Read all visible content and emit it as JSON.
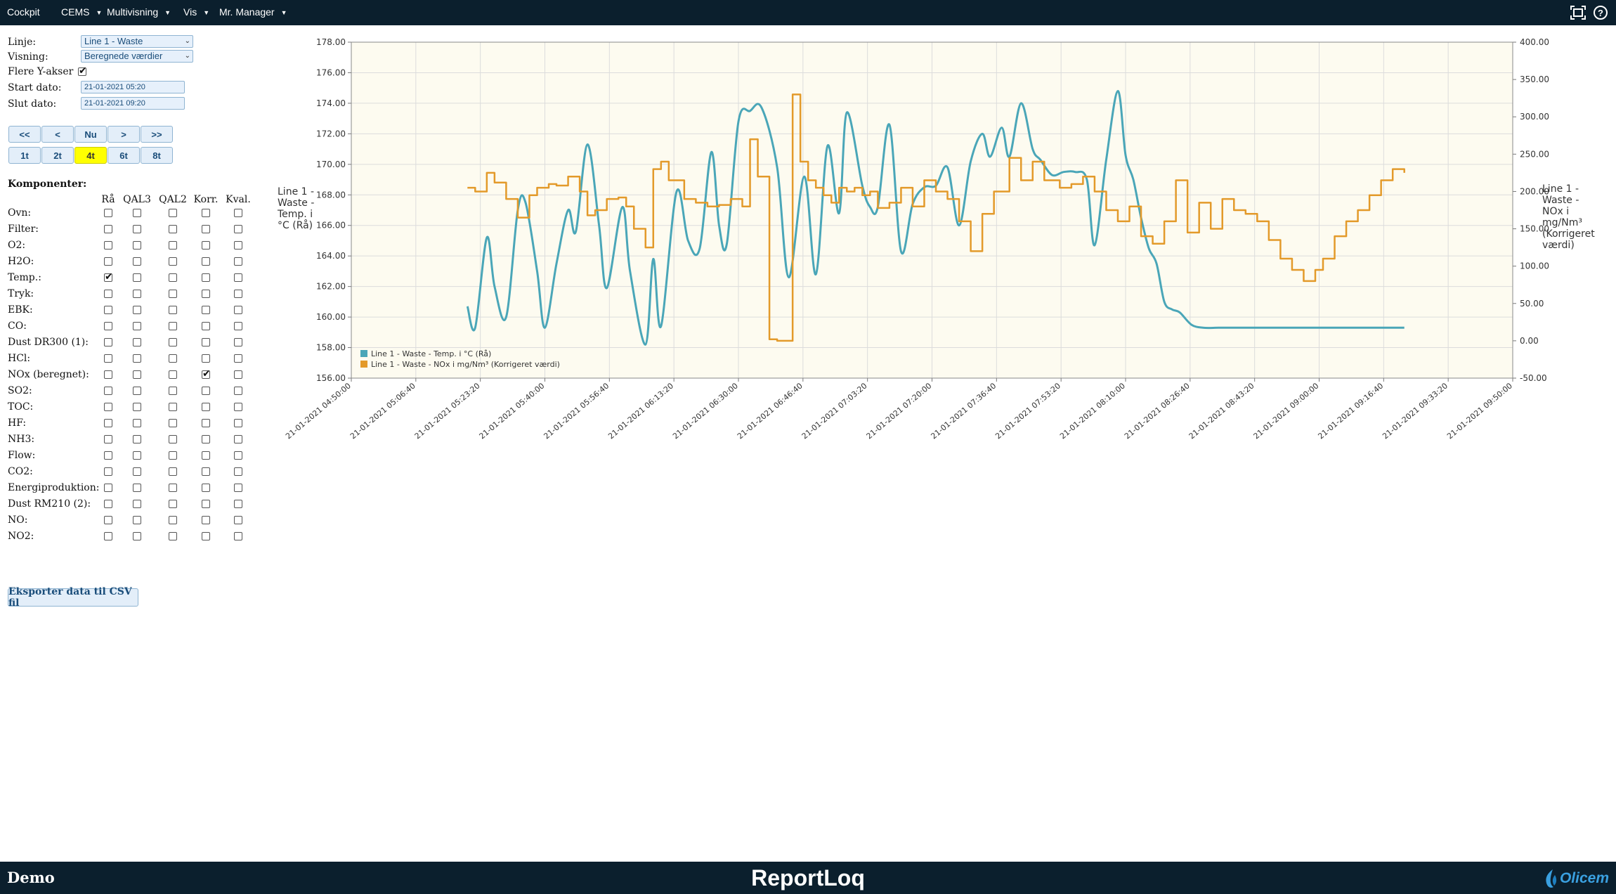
{
  "nav": {
    "items": [
      {
        "label": "Cockpit",
        "dropdown": false
      },
      {
        "label": "CEMS",
        "dropdown": true
      },
      {
        "label": "Multivisning",
        "dropdown": true
      },
      {
        "label": "Vis",
        "dropdown": true
      },
      {
        "label": "Mr. Manager",
        "dropdown": true
      }
    ],
    "icons": [
      "fullscreen-icon",
      "help-icon"
    ],
    "help_glyph": "?"
  },
  "form": {
    "linje_label": "Linje:",
    "linje_value": "Line 1 - Waste",
    "visning_label": "Visning:",
    "visning_value": "Beregnede værdier",
    "flere_label": "Flere Y-akser",
    "flere_checked": true,
    "start_label": "Start dato:",
    "start_value": "21-01-2021 05:20",
    "slut_label": "Slut dato:",
    "slut_value": "21-01-2021 09:20"
  },
  "nav_buttons": [
    "<<",
    "<",
    "Nu",
    ">",
    ">>"
  ],
  "range_buttons": [
    {
      "label": "1t",
      "active": false
    },
    {
      "label": "2t",
      "active": false
    },
    {
      "label": "4t",
      "active": true
    },
    {
      "label": "6t",
      "active": false
    },
    {
      "label": "8t",
      "active": false
    }
  ],
  "components": {
    "title": "Komponenter:",
    "columns": [
      "Rå",
      "QAL3",
      "QAL2",
      "Korr.",
      "Kval."
    ],
    "rows": [
      {
        "name": "Ovn:",
        "checks": [
          false,
          false,
          false,
          false,
          false
        ]
      },
      {
        "name": "Filter:",
        "checks": [
          false,
          false,
          false,
          false,
          false
        ]
      },
      {
        "name": "O2:",
        "checks": [
          false,
          false,
          false,
          false,
          false
        ]
      },
      {
        "name": "H2O:",
        "checks": [
          false,
          false,
          false,
          false,
          false
        ]
      },
      {
        "name": "Temp.:",
        "checks": [
          true,
          false,
          false,
          false,
          false
        ]
      },
      {
        "name": "Tryk:",
        "checks": [
          false,
          false,
          false,
          false,
          false
        ]
      },
      {
        "name": "EBK:",
        "checks": [
          false,
          false,
          false,
          false,
          false
        ]
      },
      {
        "name": "CO:",
        "checks": [
          false,
          false,
          false,
          false,
          false
        ]
      },
      {
        "name": "Dust DR300 (1):",
        "checks": [
          false,
          false,
          false,
          false,
          false
        ]
      },
      {
        "name": "HCl:",
        "checks": [
          false,
          false,
          false,
          false,
          false
        ]
      },
      {
        "name": "NOx (beregnet):",
        "checks": [
          false,
          false,
          false,
          true,
          false
        ]
      },
      {
        "name": "SO2:",
        "checks": [
          false,
          false,
          false,
          false,
          false
        ]
      },
      {
        "name": "TOC:",
        "checks": [
          false,
          false,
          false,
          false,
          false
        ]
      },
      {
        "name": "HF:",
        "checks": [
          false,
          false,
          false,
          false,
          false
        ]
      },
      {
        "name": "NH3:",
        "checks": [
          false,
          false,
          false,
          false,
          false
        ]
      },
      {
        "name": "Flow:",
        "checks": [
          false,
          false,
          false,
          false,
          false
        ]
      },
      {
        "name": "CO2:",
        "checks": [
          false,
          false,
          false,
          false,
          false
        ]
      },
      {
        "name": "Energiproduktion:",
        "checks": [
          false,
          false,
          false,
          false,
          false
        ]
      },
      {
        "name": "Dust RM210 (2):",
        "checks": [
          false,
          false,
          false,
          false,
          false
        ]
      },
      {
        "name": "NO:",
        "checks": [
          false,
          false,
          false,
          false,
          false
        ]
      },
      {
        "name": "NO2:",
        "checks": [
          false,
          false,
          false,
          false,
          false
        ]
      }
    ]
  },
  "export_label": "Eksporter data til CSV fil",
  "footer": {
    "left": "Demo",
    "center": "ReportLoq",
    "logo_text": "Olicem"
  },
  "colors": {
    "nav_bg": "#0b1f2d",
    "plot_bg": "#fdfbf0",
    "temp_series": "#4aa6b8",
    "nox_series": "#e39a2a",
    "active_button": "#ffff00"
  },
  "chart_data": {
    "type": "line",
    "grid": true,
    "legend_position": "bottom-left",
    "x_ticks": [
      "21-01-2021 04:50:00",
      "21-01-2021 05:06:40",
      "21-01-2021 05:23:20",
      "21-01-2021 05:40:00",
      "21-01-2021 05:56:40",
      "21-01-2021 06:13:20",
      "21-01-2021 06:30:00",
      "21-01-2021 06:46:40",
      "21-01-2021 07:03:20",
      "21-01-2021 07:20:00",
      "21-01-2021 07:36:40",
      "21-01-2021 07:53:20",
      "21-01-2021 08:10:00",
      "21-01-2021 08:26:40",
      "21-01-2021 08:43:20",
      "21-01-2021 09:00:00",
      "21-01-2021 09:16:40",
      "21-01-2021 09:33:20",
      "21-01-2021 09:50:00"
    ],
    "xlim": [
      "21-01-2021 04:50:00",
      "21-01-2021 09:50:00"
    ],
    "y_left": {
      "label": "Line 1 - Waste - Temp. i °C (Rå)",
      "ylim": [
        156,
        178
      ],
      "ticks": [
        "156.00",
        "158.00",
        "160.00",
        "162.00",
        "164.00",
        "166.00",
        "168.00",
        "170.00",
        "172.00",
        "174.00",
        "176.00",
        "178.00"
      ]
    },
    "y_right": {
      "label": "Line 1 - Waste - NOx i mg/Nm³ (Korrigeret værdi)",
      "ylim": [
        -50,
        400
      ],
      "ticks": [
        "-50.00",
        "0.00",
        "50.00",
        "100.00",
        "150.00",
        "200.00",
        "250.00",
        "300.00",
        "350.00",
        "400.00"
      ]
    },
    "series": [
      {
        "name": "Line 1 - Waste - Temp. i °C (Rå)",
        "axis": "left",
        "x": [
          "05:20",
          "05:22",
          "05:25",
          "05:27",
          "05:30",
          "05:33",
          "05:35",
          "05:38",
          "05:40",
          "05:43",
          "05:46",
          "05:48",
          "05:51",
          "05:54",
          "05:56",
          "06:00",
          "06:02",
          "06:06",
          "06:08",
          "06:10",
          "06:14",
          "06:17",
          "06:20",
          "06:23",
          "06:25",
          "06:27",
          "06:30",
          "06:33",
          "06:36",
          "06:40",
          "06:43",
          "06:47",
          "06:50",
          "06:53",
          "06:56",
          "06:58",
          "07:02",
          "07:04",
          "07:06",
          "07:09",
          "07:12",
          "07:15",
          "07:18",
          "07:21",
          "07:24",
          "07:27",
          "07:30",
          "07:33",
          "07:35",
          "07:38",
          "07:40",
          "07:43",
          "07:46",
          "07:48",
          "07:51",
          "07:54",
          "07:57",
          "08:00",
          "08:02",
          "08:05",
          "08:08",
          "08:10",
          "08:12",
          "08:14",
          "08:16",
          "08:18",
          "08:20",
          "08:22",
          "08:24",
          "08:27",
          "08:30",
          "08:34",
          "08:38",
          "08:42",
          "08:45",
          "08:48",
          "08:51",
          "08:54",
          "08:57",
          "09:00",
          "09:03",
          "09:06",
          "09:08",
          "09:11",
          "09:14",
          "09:17",
          "09:19",
          "09:22"
        ],
        "values": [
          160.7,
          159.3,
          165.2,
          162.0,
          160.0,
          167.0,
          167.5,
          163.0,
          159.3,
          163.5,
          167.0,
          165.6,
          171.3,
          166.0,
          161.9,
          167.2,
          163.0,
          158.2,
          163.8,
          159.4,
          168.2,
          165.0,
          164.5,
          170.8,
          166.0,
          164.8,
          172.8,
          173.5,
          173.7,
          169.8,
          162.6,
          169.2,
          162.8,
          171.2,
          166.8,
          173.4,
          168.6,
          167.2,
          167.2,
          172.6,
          164.3,
          167.4,
          168.5,
          168.6,
          169.8,
          166.0,
          170.2,
          172.0,
          170.5,
          172.4,
          170.5,
          174.0,
          171.0,
          170.3,
          169.3,
          169.5,
          169.5,
          169.0,
          164.7,
          170.3,
          174.8,
          170.6,
          169.0,
          166.5,
          164.5,
          163.5,
          161.0,
          160.5,
          160.3,
          159.5,
          159.3,
          159.3,
          159.3,
          159.3,
          159.3,
          159.3,
          159.3,
          159.3,
          159.3,
          159.3,
          159.3,
          159.3,
          159.3,
          159.3,
          159.3,
          159.3,
          159.3,
          159.3
        ]
      },
      {
        "name": "Line 1 - Waste - NOx i mg/Nm³ (Korrigeret værdi)",
        "axis": "right",
        "x": [
          "05:20",
          "05:22",
          "05:25",
          "05:27",
          "05:30",
          "05:33",
          "05:36",
          "05:38",
          "05:41",
          "05:43",
          "05:46",
          "05:49",
          "05:51",
          "05:53",
          "05:56",
          "05:59",
          "06:01",
          "06:03",
          "06:06",
          "06:08",
          "06:10",
          "06:12",
          "06:16",
          "06:19",
          "06:22",
          "06:25",
          "06:28",
          "06:31",
          "06:33",
          "06:35",
          "06:38",
          "06:40",
          "06:42",
          "06:44",
          "06:46",
          "06:48",
          "06:50",
          "06:52",
          "06:54",
          "06:56",
          "06:58",
          "07:00",
          "07:02",
          "07:04",
          "07:06",
          "07:09",
          "07:12",
          "07:15",
          "07:18",
          "07:21",
          "07:24",
          "07:27",
          "07:30",
          "07:33",
          "07:36",
          "07:40",
          "07:43",
          "07:46",
          "07:49",
          "07:53",
          "07:56",
          "07:59",
          "08:02",
          "08:05",
          "08:08",
          "08:11",
          "08:14",
          "08:17",
          "08:20",
          "08:23",
          "08:26",
          "08:29",
          "08:32",
          "08:35",
          "08:38",
          "08:41",
          "08:44",
          "08:47",
          "08:50",
          "08:53",
          "08:56",
          "08:59",
          "09:01",
          "09:04",
          "09:07",
          "09:10",
          "09:13",
          "09:16",
          "09:19",
          "09:22"
        ],
        "values": [
          205,
          200,
          225,
          212,
          190,
          165,
          195,
          205,
          210,
          208,
          220,
          200,
          168,
          175,
          190,
          192,
          180,
          150,
          125,
          230,
          240,
          215,
          190,
          185,
          180,
          182,
          190,
          180,
          270,
          220,
          2,
          0,
          0,
          330,
          240,
          215,
          205,
          195,
          185,
          205,
          200,
          205,
          195,
          200,
          178,
          185,
          205,
          180,
          215,
          200,
          190,
          160,
          120,
          170,
          200,
          245,
          215,
          240,
          215,
          205,
          210,
          220,
          200,
          175,
          160,
          180,
          140,
          130,
          160,
          215,
          145,
          185,
          150,
          190,
          175,
          170,
          160,
          135,
          110,
          95,
          80,
          95,
          110,
          140,
          160,
          175,
          195,
          215,
          230,
          225
        ]
      }
    ]
  }
}
